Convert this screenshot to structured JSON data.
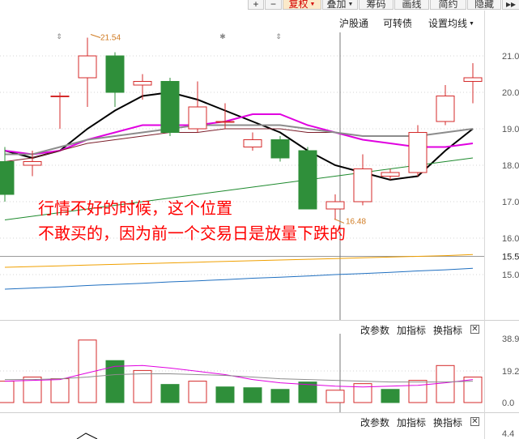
{
  "toolbar": {
    "buttons": [
      {
        "label": "+"
      },
      {
        "label": "−"
      },
      {
        "label": "复权",
        "active": true,
        "dropdown": true
      },
      {
        "label": "叠加",
        "dropdown": true
      },
      {
        "label": "筹码"
      },
      {
        "label": "画线"
      },
      {
        "label": "简约"
      },
      {
        "label": "隐藏"
      },
      {
        "label": "▸▸"
      }
    ]
  },
  "top_links": {
    "hgt": "沪股通",
    "kzz": "可转债",
    "ma": "设置均线"
  },
  "indicator_bar": {
    "params": "改参数",
    "add": "加指标",
    "switch": "换指标",
    "close": "✕"
  },
  "colors": {
    "up": "#d42a2a",
    "down": "#2f8f3a",
    "ma5": "#000000",
    "ma10": "#e000e0",
    "ma20": "#7b1e2a",
    "ma30": "#8c8c8c",
    "ma60": "#1e8a2e",
    "ma_orange": "#f0a000",
    "ma_blue": "#1f6fc0",
    "annotation": "#ff0000",
    "axis_text": "#555555"
  },
  "chart_data": [
    {
      "type": "candlestick",
      "ylim": [
        14.5,
        21.5
      ],
      "y_ticks": [
        "21.0",
        "20.0",
        "19.0",
        "18.0",
        "17.0",
        "16.0",
        "15.0"
      ],
      "last_price_label": "15.5",
      "high_marker": "21.54",
      "low_marker": "16.48",
      "candles": [
        {
          "o": 18.1,
          "h": 18.5,
          "l": 17.0,
          "c": 17.2
        },
        {
          "o": 18.0,
          "h": 18.4,
          "l": 17.7,
          "c": 18.1
        },
        {
          "o": 19.9,
          "h": 20.0,
          "l": 19.0,
          "c": 19.9
        },
        {
          "o": 20.4,
          "h": 21.5,
          "l": 19.6,
          "c": 21.0
        },
        {
          "o": 21.0,
          "h": 21.1,
          "l": 19.6,
          "c": 20.0
        },
        {
          "o": 20.2,
          "h": 20.5,
          "l": 19.8,
          "c": 20.3
        },
        {
          "o": 20.3,
          "h": 20.4,
          "l": 18.8,
          "c": 18.9
        },
        {
          "o": 19.0,
          "h": 20.3,
          "l": 18.9,
          "c": 19.6
        },
        {
          "o": 19.2,
          "h": 19.7,
          "l": 19.0,
          "c": 19.2
        },
        {
          "o": 18.5,
          "h": 18.9,
          "l": 18.4,
          "c": 18.7
        },
        {
          "o": 18.7,
          "h": 18.8,
          "l": 18.1,
          "c": 18.2
        },
        {
          "o": 18.4,
          "h": 18.5,
          "l": 16.8,
          "c": 16.8
        },
        {
          "o": 16.8,
          "h": 17.2,
          "l": 16.5,
          "c": 17.0
        },
        {
          "o": 17.0,
          "h": 18.3,
          "l": 16.9,
          "c": 17.9
        },
        {
          "o": 17.7,
          "h": 17.9,
          "l": 17.6,
          "c": 17.8
        },
        {
          "o": 17.8,
          "h": 19.1,
          "l": 17.7,
          "c": 18.9
        },
        {
          "o": 19.2,
          "h": 20.2,
          "l": 19.1,
          "c": 19.9
        },
        {
          "o": 20.3,
          "h": 20.8,
          "l": 19.7,
          "c": 20.4
        }
      ],
      "series": [
        {
          "key": "ma5",
          "values": [
            18.4,
            18.2,
            18.4,
            19.0,
            19.5,
            19.9,
            20.0,
            19.8,
            19.5,
            19.2,
            18.9,
            18.4,
            18.0,
            17.8,
            17.6,
            17.7,
            18.4,
            19.0
          ]
        },
        {
          "key": "ma10",
          "values": [
            18.4,
            18.3,
            18.4,
            18.7,
            18.9,
            19.1,
            19.1,
            19.1,
            19.2,
            19.4,
            19.4,
            19.1,
            18.9,
            18.7,
            18.6,
            18.5,
            18.5,
            18.6
          ]
        },
        {
          "key": "ma20",
          "values": [
            18.1,
            18.2,
            18.4,
            18.6,
            18.7,
            18.8,
            18.9,
            18.9,
            19.0,
            19.0,
            19.0,
            18.9,
            18.9,
            18.8,
            18.8,
            18.8,
            18.9,
            19.0
          ]
        },
        {
          "key": "ma30",
          "values": [
            18.3,
            18.3,
            18.5,
            18.7,
            18.8,
            18.9,
            19.0,
            19.1,
            19.1,
            19.1,
            19.1,
            19.0,
            18.9,
            18.8,
            18.8,
            18.8,
            18.9,
            19.0
          ]
        },
        {
          "key": "ma60",
          "values": [
            16.5,
            16.6,
            16.7,
            16.8,
            16.9,
            17.0,
            17.1,
            17.2,
            17.3,
            17.4,
            17.5,
            17.6,
            17.7,
            17.8,
            17.9,
            18.0,
            18.1,
            18.2
          ]
        },
        {
          "key": "ma_orange",
          "values": [
            15.2,
            15.22,
            15.24,
            15.26,
            15.28,
            15.3,
            15.32,
            15.34,
            15.36,
            15.38,
            15.4,
            15.42,
            15.44,
            15.46,
            15.48,
            15.5,
            15.52,
            15.55
          ]
        },
        {
          "key": "ma_blue",
          "values": [
            14.6,
            14.63,
            14.66,
            14.7,
            14.73,
            14.76,
            14.8,
            14.83,
            14.86,
            14.9,
            14.93,
            14.96,
            15.0,
            15.03,
            15.06,
            15.1,
            15.13,
            15.17
          ]
        }
      ],
      "annotation": [
        "行情不好的时候，这个位置",
        "不敢买的，因为前一个交易日是放量下跌的"
      ]
    },
    {
      "type": "bar",
      "y_ticks": [
        "38.9",
        "19.2",
        "0.0"
      ],
      "ylim": [
        0,
        40
      ],
      "values": [
        13.0,
        15.5,
        14.5,
        38.0,
        25.5,
        19.5,
        11.0,
        13.0,
        9.5,
        9.0,
        8.0,
        12.5,
        7.5,
        11.5,
        8.0,
        13.5,
        22.5,
        15.5
      ],
      "up": [
        true,
        true,
        true,
        true,
        false,
        true,
        false,
        true,
        false,
        false,
        false,
        false,
        true,
        true,
        false,
        true,
        true,
        true
      ],
      "series": [
        {
          "key": "ma10",
          "values": [
            13,
            13.5,
            14,
            18,
            22,
            22.5,
            21,
            19,
            17,
            14,
            12,
            11,
            10,
            9.5,
            10,
            10.5,
            12,
            14
          ]
        },
        {
          "key": "ma30",
          "values": [
            14,
            14,
            14.5,
            15.5,
            17,
            17.5,
            17.5,
            17,
            16.5,
            15.5,
            14.5,
            14,
            13.5,
            13,
            12.5,
            12.5,
            12.5,
            13
          ]
        }
      ]
    }
  ],
  "bottom_ticks": [
    "4.4"
  ]
}
